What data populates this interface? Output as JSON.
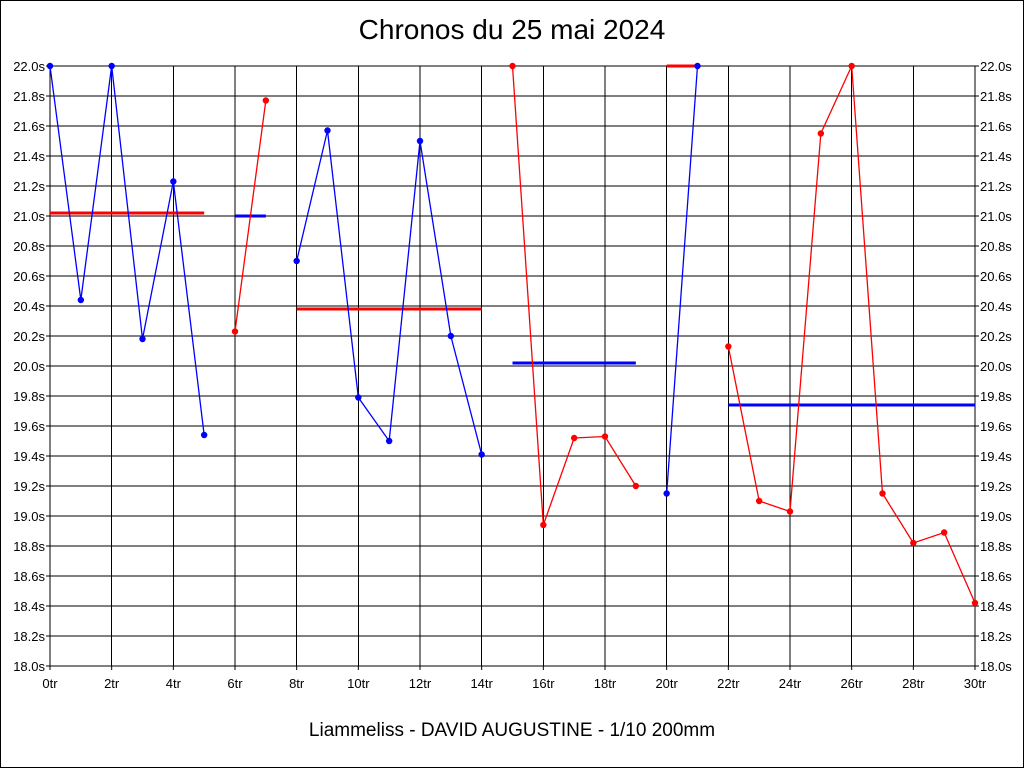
{
  "chart_data": {
    "type": "line",
    "title": "Chronos du 25 mai 2024",
    "caption": "Liammeliss - DAVID AUGUSTINE - 1/10 200mm",
    "xlabel": "",
    "ylabel": "",
    "xlim": [
      0,
      30
    ],
    "ylim": [
      18.0,
      22.0
    ],
    "x_ticks": [
      0,
      2,
      4,
      6,
      8,
      10,
      12,
      14,
      16,
      18,
      20,
      22,
      24,
      26,
      28,
      30
    ],
    "x_tick_labels": [
      "0tr",
      "2tr",
      "4tr",
      "6tr",
      "8tr",
      "10tr",
      "12tr",
      "14tr",
      "16tr",
      "18tr",
      "20tr",
      "22tr",
      "24tr",
      "26tr",
      "28tr",
      "30tr"
    ],
    "y_ticks": [
      18.0,
      18.2,
      18.4,
      18.6,
      18.8,
      19.0,
      19.2,
      19.4,
      19.6,
      19.8,
      20.0,
      20.2,
      20.4,
      20.6,
      20.8,
      21.0,
      21.2,
      21.4,
      21.6,
      21.8,
      22.0
    ],
    "y_tick_labels": [
      "18.0s",
      "18.2s",
      "18.4s",
      "18.6s",
      "18.8s",
      "19.0s",
      "19.2s",
      "19.4s",
      "19.6s",
      "19.8s",
      "20.0s",
      "20.2s",
      "20.4s",
      "20.6s",
      "20.8s",
      "21.0s",
      "21.2s",
      "21.4s",
      "21.6s",
      "21.8s",
      "22.0s"
    ],
    "grid": true,
    "y_labels_both_sides": true,
    "series": [
      {
        "color": "#0000ff",
        "points": [
          [
            0,
            22.0
          ],
          [
            1,
            20.44
          ],
          [
            2,
            22.0
          ],
          [
            3,
            20.18
          ],
          [
            4,
            21.23
          ],
          [
            5,
            19.54
          ]
        ]
      },
      {
        "color": "#ff0000",
        "points": [
          [
            6,
            20.23
          ],
          [
            7,
            21.77
          ]
        ]
      },
      {
        "color": "#0000ff",
        "points": [
          [
            8,
            20.7
          ],
          [
            9,
            21.57
          ],
          [
            10,
            19.79
          ],
          [
            11,
            19.5
          ],
          [
            12,
            21.5
          ],
          [
            13,
            20.2
          ],
          [
            14,
            19.41
          ]
        ]
      },
      {
        "color": "#ff0000",
        "points": [
          [
            15,
            22.0
          ],
          [
            16,
            18.94
          ],
          [
            17,
            19.52
          ],
          [
            18,
            19.53
          ],
          [
            19,
            19.2
          ]
        ]
      },
      {
        "color": "#0000ff",
        "points": [
          [
            20,
            19.15
          ],
          [
            21,
            22.0
          ]
        ]
      },
      {
        "color": "#ff0000",
        "points": [
          [
            22,
            20.13
          ],
          [
            23,
            19.1
          ],
          [
            24,
            19.03
          ],
          [
            25,
            21.55
          ],
          [
            26,
            22.0
          ],
          [
            27,
            19.15
          ],
          [
            28,
            18.82
          ],
          [
            29,
            18.89
          ],
          [
            30,
            18.42
          ]
        ]
      }
    ],
    "averages": [
      {
        "color": "#ff0000",
        "x": [
          0,
          5
        ],
        "y": 21.02
      },
      {
        "color": "#0000ff",
        "x": [
          6,
          7
        ],
        "y": 21.0
      },
      {
        "color": "#ff0000",
        "x": [
          8,
          14
        ],
        "y": 20.38
      },
      {
        "color": "#0000ff",
        "x": [
          15,
          19
        ],
        "y": 20.02
      },
      {
        "color": "#ff0000",
        "x": [
          20,
          21
        ],
        "y": 22.0
      },
      {
        "color": "#0000ff",
        "x": [
          22,
          30
        ],
        "y": 19.74
      }
    ]
  }
}
